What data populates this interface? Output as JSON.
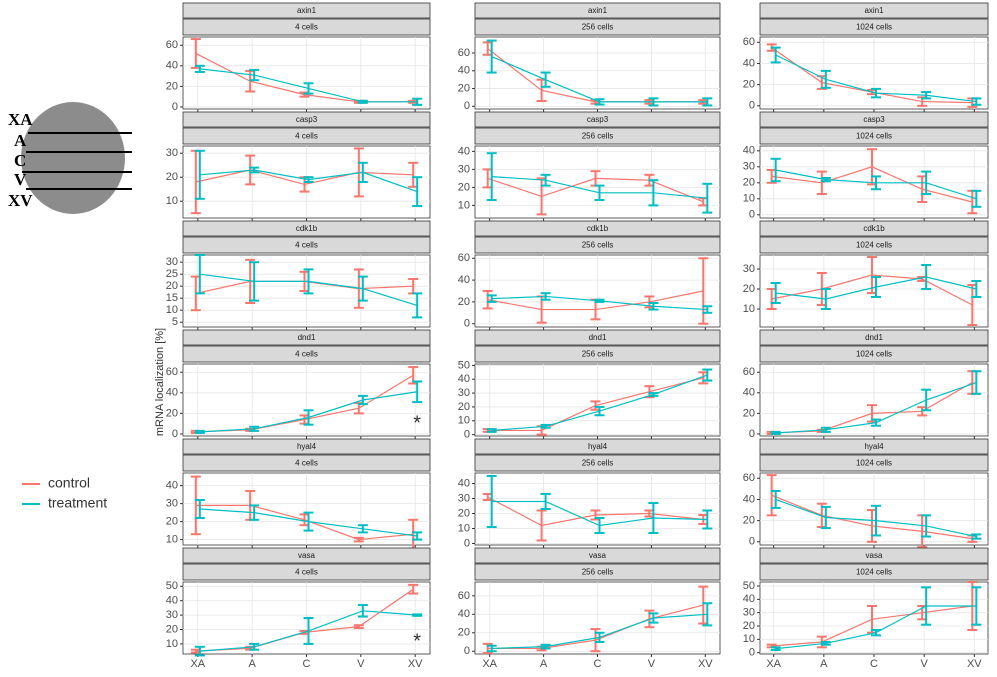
{
  "y_label": "mRNA localization [%]",
  "diagram": {
    "labels": [
      "XA",
      "A",
      "C",
      "V",
      "XV"
    ]
  },
  "chart_data": [
    {
      "type": "line",
      "gene": "axin1",
      "stage": "4 cells",
      "categories": [
        "XA",
        "A",
        "C",
        "V",
        "XV"
      ],
      "ylim": [
        -2,
        68
      ],
      "yticks": [
        0,
        20,
        40,
        60
      ],
      "series": [
        {
          "name": "control",
          "color": "#f8766d",
          "values": [
            52,
            25,
            12,
            5,
            5
          ],
          "errors": [
            14,
            10,
            2,
            1,
            1
          ]
        },
        {
          "name": "treatment",
          "color": "#00bfc4",
          "values": [
            37,
            31,
            18,
            5,
            5
          ],
          "errors": [
            3,
            5,
            5,
            1,
            3
          ]
        }
      ]
    },
    {
      "type": "line",
      "gene": "axin1",
      "stage": "256 cells",
      "categories": [
        "XA",
        "A",
        "C",
        "V",
        "XV"
      ],
      "ylim": [
        -3,
        78
      ],
      "yticks": [
        0,
        20,
        40,
        60
      ],
      "series": [
        {
          "name": "control",
          "color": "#f8766d",
          "values": [
            65,
            18,
            5,
            5,
            5
          ],
          "errors": [
            7,
            12,
            2,
            2,
            2
          ]
        },
        {
          "name": "treatment",
          "color": "#00bfc4",
          "values": [
            56,
            30,
            5,
            5,
            5
          ],
          "errors": [
            18,
            8,
            3,
            4,
            4
          ]
        }
      ]
    },
    {
      "type": "line",
      "gene": "axin1",
      "stage": "1024 cells",
      "categories": [
        "XA",
        "A",
        "C",
        "V",
        "XV"
      ],
      "ylim": [
        -3,
        65
      ],
      "yticks": [
        0,
        20,
        40,
        60
      ],
      "series": [
        {
          "name": "control",
          "color": "#f8766d",
          "values": [
            55,
            22,
            13,
            4,
            3
          ],
          "errors": [
            3,
            6,
            2,
            4,
            4
          ]
        },
        {
          "name": "treatment",
          "color": "#00bfc4",
          "values": [
            48,
            25,
            12,
            10,
            4
          ],
          "errors": [
            7,
            8,
            4,
            3,
            3
          ]
        }
      ]
    },
    {
      "type": "line",
      "gene": "casp3",
      "stage": "4 cells",
      "categories": [
        "XA",
        "A",
        "C",
        "V",
        "XV"
      ],
      "ylim": [
        3,
        33
      ],
      "yticks": [
        10,
        20,
        30
      ],
      "series": [
        {
          "name": "control",
          "color": "#f8766d",
          "values": [
            18,
            23,
            17,
            22,
            21
          ],
          "errors": [
            13,
            6,
            3,
            10,
            5
          ]
        },
        {
          "name": "treatment",
          "color": "#00bfc4",
          "values": [
            21,
            23,
            19,
            22,
            14
          ],
          "errors": [
            10,
            1,
            1,
            4,
            6
          ]
        }
      ]
    },
    {
      "type": "line",
      "gene": "casp3",
      "stage": "256 cells",
      "categories": [
        "XA",
        "A",
        "C",
        "V",
        "XV"
      ],
      "ylim": [
        3,
        43
      ],
      "yticks": [
        10,
        20,
        30,
        40
      ],
      "series": [
        {
          "name": "control",
          "color": "#f8766d",
          "values": [
            25,
            15,
            25,
            24,
            12
          ],
          "errors": [
            5,
            10,
            4,
            3,
            2
          ]
        },
        {
          "name": "treatment",
          "color": "#00bfc4",
          "values": [
            26,
            24,
            17,
            17,
            14
          ],
          "errors": [
            13,
            3,
            4,
            7,
            8
          ]
        }
      ]
    },
    {
      "type": "line",
      "gene": "casp3",
      "stage": "1024 cells",
      "categories": [
        "XA",
        "A",
        "C",
        "V",
        "XV"
      ],
      "ylim": [
        -2,
        43
      ],
      "yticks": [
        0,
        10,
        20,
        30,
        40
      ],
      "series": [
        {
          "name": "control",
          "color": "#f8766d",
          "values": [
            24,
            20,
            30,
            16,
            8
          ],
          "errors": [
            4,
            7,
            11,
            8,
            7
          ]
        },
        {
          "name": "treatment",
          "color": "#00bfc4",
          "values": [
            28,
            22,
            20,
            20,
            10
          ],
          "errors": [
            7,
            1,
            4,
            7,
            5
          ]
        }
      ]
    },
    {
      "type": "line",
      "gene": "cdk1b",
      "stage": "4 cells",
      "categories": [
        "XA",
        "A",
        "C",
        "V",
        "XV"
      ],
      "ylim": [
        3,
        33
      ],
      "yticks": [
        5,
        10,
        15,
        20,
        25,
        30
      ],
      "series": [
        {
          "name": "control",
          "color": "#f8766d",
          "values": [
            17,
            22,
            22,
            19,
            20
          ],
          "errors": [
            7,
            9,
            4,
            8,
            3
          ]
        },
        {
          "name": "treatment",
          "color": "#00bfc4",
          "values": [
            25,
            22,
            22,
            19,
            12
          ],
          "errors": [
            8,
            8,
            5,
            5,
            5
          ]
        }
      ]
    },
    {
      "type": "line",
      "gene": "cdk1b",
      "stage": "256 cells",
      "categories": [
        "XA",
        "A",
        "C",
        "V",
        "XV"
      ],
      "ylim": [
        -3,
        63
      ],
      "yticks": [
        0,
        20,
        40,
        60
      ],
      "series": [
        {
          "name": "control",
          "color": "#f8766d",
          "values": [
            22,
            13,
            13,
            20,
            30
          ],
          "errors": [
            8,
            12,
            9,
            5,
            30
          ]
        },
        {
          "name": "treatment",
          "color": "#00bfc4",
          "values": [
            23,
            25,
            21,
            16,
            13
          ],
          "errors": [
            3,
            3,
            1,
            3,
            3
          ]
        }
      ]
    },
    {
      "type": "line",
      "gene": "cdk1b",
      "stage": "1024 cells",
      "categories": [
        "XA",
        "A",
        "C",
        "V",
        "XV"
      ],
      "ylim": [
        1,
        37
      ],
      "yticks": [
        10,
        20,
        30
      ],
      "series": [
        {
          "name": "control",
          "color": "#f8766d",
          "values": [
            15,
            20,
            27,
            25,
            12
          ],
          "errors": [
            5,
            8,
            9,
            1,
            10
          ]
        },
        {
          "name": "treatment",
          "color": "#00bfc4",
          "values": [
            18,
            15,
            21,
            26,
            20
          ],
          "errors": [
            5,
            5,
            5,
            6,
            4
          ]
        }
      ]
    },
    {
      "type": "line",
      "gene": "dnd1",
      "stage": "4 cells",
      "categories": [
        "XA",
        "A",
        "C",
        "V",
        "XV"
      ],
      "ylim": [
        -2,
        68
      ],
      "yticks": [
        0,
        20,
        40,
        60
      ],
      "annotation": "*",
      "series": [
        {
          "name": "control",
          "color": "#f8766d",
          "values": [
            2,
            4,
            14,
            25,
            57
          ],
          "errors": [
            1,
            1,
            4,
            5,
            8
          ]
        },
        {
          "name": "treatment",
          "color": "#00bfc4",
          "values": [
            2,
            5,
            16,
            33,
            41
          ],
          "errors": [
            1,
            2,
            7,
            4,
            10
          ]
        }
      ]
    },
    {
      "type": "line",
      "gene": "dnd1",
      "stage": "256 cells",
      "categories": [
        "XA",
        "A",
        "C",
        "V",
        "XV"
      ],
      "ylim": [
        -1,
        51
      ],
      "yticks": [
        0,
        10,
        20,
        30,
        40,
        50
      ],
      "series": [
        {
          "name": "control",
          "color": "#f8766d",
          "values": [
            3,
            3,
            21,
            31,
            41
          ],
          "errors": [
            1,
            3,
            3,
            4,
            4
          ]
        },
        {
          "name": "treatment",
          "color": "#00bfc4",
          "values": [
            3,
            6,
            17,
            29,
            43
          ],
          "errors": [
            1,
            1,
            3,
            1,
            4
          ]
        }
      ]
    },
    {
      "type": "line",
      "gene": "dnd1",
      "stage": "1024 cells",
      "categories": [
        "XA",
        "A",
        "C",
        "V",
        "XV"
      ],
      "ylim": [
        -2,
        68
      ],
      "yticks": [
        0,
        20,
        40,
        60
      ],
      "series": [
        {
          "name": "control",
          "color": "#f8766d",
          "values": [
            1,
            3,
            20,
            22,
            50
          ],
          "errors": [
            1,
            1,
            8,
            4,
            11
          ]
        },
        {
          "name": "treatment",
          "color": "#00bfc4",
          "values": [
            1,
            4,
            11,
            33,
            50
          ],
          "errors": [
            1,
            2,
            3,
            10,
            11
          ]
        }
      ]
    },
    {
      "type": "line",
      "gene": "hyal4",
      "stage": "4 cells",
      "categories": [
        "XA",
        "A",
        "C",
        "V",
        "XV"
      ],
      "ylim": [
        7,
        47
      ],
      "yticks": [
        10,
        20,
        30,
        40
      ],
      "series": [
        {
          "name": "control",
          "color": "#f8766d",
          "values": [
            29,
            29,
            21,
            10,
            13
          ],
          "errors": [
            16,
            8,
            3,
            1,
            8
          ]
        },
        {
          "name": "treatment",
          "color": "#00bfc4",
          "values": [
            27,
            25,
            20,
            16,
            12
          ],
          "errors": [
            5,
            4,
            5,
            2,
            2
          ]
        }
      ]
    },
    {
      "type": "line",
      "gene": "hyal4",
      "stage": "256 cells",
      "categories": [
        "XA",
        "A",
        "C",
        "V",
        "XV"
      ],
      "ylim": [
        -1,
        47
      ],
      "yticks": [
        0,
        10,
        20,
        30,
        40
      ],
      "series": [
        {
          "name": "control",
          "color": "#f8766d",
          "values": [
            31,
            12,
            19,
            20,
            16
          ],
          "errors": [
            2,
            10,
            3,
            2,
            3
          ]
        },
        {
          "name": "treatment",
          "color": "#00bfc4",
          "values": [
            28,
            28,
            12,
            17,
            16
          ],
          "errors": [
            17,
            5,
            5,
            10,
            6
          ]
        }
      ]
    },
    {
      "type": "line",
      "gene": "hyal4",
      "stage": "1024 cells",
      "categories": [
        "XA",
        "A",
        "C",
        "V",
        "XV"
      ],
      "ylim": [
        -3,
        65
      ],
      "yticks": [
        0,
        20,
        40,
        60
      ],
      "series": [
        {
          "name": "control",
          "color": "#f8766d",
          "values": [
            44,
            25,
            15,
            10,
            3
          ],
          "errors": [
            19,
            11,
            15,
            15,
            3
          ]
        },
        {
          "name": "treatment",
          "color": "#00bfc4",
          "values": [
            40,
            23,
            20,
            15,
            5
          ],
          "errors": [
            8,
            10,
            14,
            10,
            2
          ]
        }
      ]
    },
    {
      "type": "line",
      "gene": "vasa",
      "stage": "4 cells",
      "categories": [
        "XA",
        "A",
        "C",
        "V",
        "XV"
      ],
      "ylim": [
        3,
        53
      ],
      "yticks": [
        10,
        20,
        30,
        40,
        50
      ],
      "annotation": "*",
      "series": [
        {
          "name": "control",
          "color": "#f8766d",
          "values": [
            5,
            7,
            18,
            22,
            48
          ],
          "errors": [
            1,
            1,
            1,
            1,
            3
          ]
        },
        {
          "name": "treatment",
          "color": "#00bfc4",
          "values": [
            5,
            8,
            19,
            33,
            30
          ],
          "errors": [
            3,
            2,
            9,
            4,
            0.5
          ]
        }
      ]
    },
    {
      "type": "line",
      "gene": "vasa",
      "stage": "256 cells",
      "categories": [
        "XA",
        "A",
        "C",
        "V",
        "XV"
      ],
      "ylim": [
        -3,
        75
      ],
      "yticks": [
        0,
        20,
        40,
        60
      ],
      "series": [
        {
          "name": "control",
          "color": "#f8766d",
          "values": [
            3,
            3,
            12,
            35,
            50
          ],
          "errors": [
            5,
            2,
            12,
            9,
            20
          ]
        },
        {
          "name": "treatment",
          "color": "#00bfc4",
          "values": [
            3,
            5,
            15,
            36,
            40
          ],
          "errors": [
            3,
            2,
            5,
            5,
            12
          ]
        }
      ]
    },
    {
      "type": "line",
      "gene": "vasa",
      "stage": "1024 cells",
      "categories": [
        "XA",
        "A",
        "C",
        "V",
        "XV"
      ],
      "ylim": [
        -1,
        53
      ],
      "yticks": [
        0,
        10,
        20,
        30,
        40,
        50
      ],
      "series": [
        {
          "name": "control",
          "color": "#f8766d",
          "values": [
            5,
            8,
            25,
            30,
            35
          ],
          "errors": [
            1,
            4,
            10,
            5,
            18
          ]
        },
        {
          "name": "treatment",
          "color": "#00bfc4",
          "values": [
            3,
            7,
            15,
            35,
            35
          ],
          "errors": [
            1,
            1,
            2,
            14,
            14
          ]
        }
      ]
    }
  ]
}
